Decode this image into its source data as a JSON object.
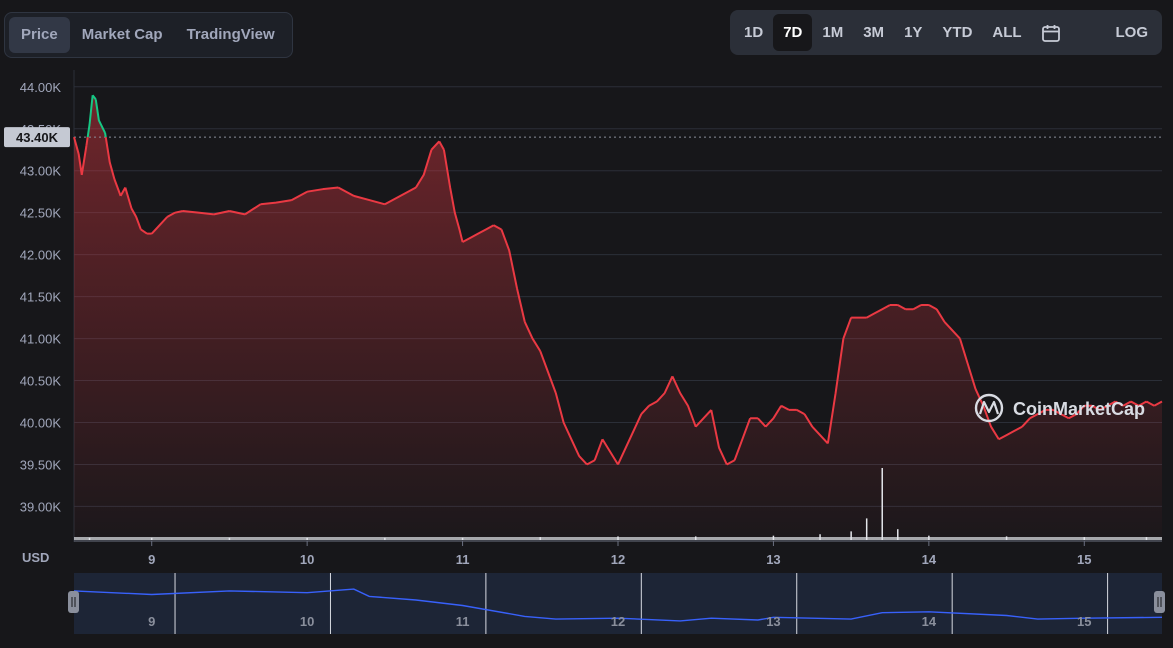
{
  "tabs": [
    {
      "label": "Price",
      "active": true
    },
    {
      "label": "Market Cap",
      "active": false
    },
    {
      "label": "TradingView",
      "active": false
    }
  ],
  "ranges": [
    {
      "label": "1D",
      "active": false
    },
    {
      "label": "7D",
      "active": true
    },
    {
      "label": "1M",
      "active": false
    },
    {
      "label": "3M",
      "active": false
    },
    {
      "label": "1Y",
      "active": false
    },
    {
      "label": "YTD",
      "active": false
    },
    {
      "label": "ALL",
      "active": false
    }
  ],
  "calendar_icon": "calendar-icon",
  "log_label": "LOG",
  "currency_label": "USD",
  "watermark": "CoinMarketCap",
  "colors": {
    "background": "#17171a",
    "down": "#ea3943",
    "up": "#16c784",
    "navigator_line": "#3861fb",
    "grid": "#2b2f38",
    "axis_text": "#a1a7bb"
  },
  "chart_data": {
    "type": "line",
    "ylim": [
      38600,
      44200
    ],
    "xlim": [
      8.5,
      15.5
    ],
    "yticks": [
      {
        "value": 39000,
        "label": "39.00K"
      },
      {
        "value": 39500,
        "label": "39.50K"
      },
      {
        "value": 40000,
        "label": "40.00K"
      },
      {
        "value": 40500,
        "label": "40.50K"
      },
      {
        "value": 41000,
        "label": "41.00K"
      },
      {
        "value": 41500,
        "label": "41.50K"
      },
      {
        "value": 42000,
        "label": "42.00K"
      },
      {
        "value": 42500,
        "label": "42.50K"
      },
      {
        "value": 43000,
        "label": "43.00K"
      },
      {
        "value": 43500,
        "label": "43.50K"
      },
      {
        "value": 44000,
        "label": "44.00K"
      }
    ],
    "xticks": [
      {
        "value": 9,
        "label": "9"
      },
      {
        "value": 10,
        "label": "10"
      },
      {
        "value": 11,
        "label": "11"
      },
      {
        "value": 12,
        "label": "12"
      },
      {
        "value": 13,
        "label": "13"
      },
      {
        "value": 14,
        "label": "14"
      },
      {
        "value": 15,
        "label": "15"
      }
    ],
    "reference": {
      "value": 43400,
      "label": "43.40K"
    },
    "grid": true,
    "series": [
      {
        "x": [
          8.5,
          8.53,
          8.55,
          8.58,
          8.6,
          8.62,
          8.64,
          8.66,
          8.7,
          8.73,
          8.76,
          8.8,
          8.83,
          8.87,
          8.9,
          8.93,
          8.97,
          9.0,
          9.05,
          9.1,
          9.15,
          9.2,
          9.3,
          9.4,
          9.5,
          9.6,
          9.7,
          9.8,
          9.9,
          10.0,
          10.1,
          10.2,
          10.3,
          10.4,
          10.5,
          10.6,
          10.7,
          10.75,
          10.8,
          10.85,
          10.88,
          10.92,
          10.95,
          10.98,
          11.0,
          11.05,
          11.1,
          11.15,
          11.2,
          11.25,
          11.3,
          11.35,
          11.4,
          11.45,
          11.5,
          11.55,
          11.6,
          11.65,
          11.7,
          11.75,
          11.8,
          11.85,
          11.9,
          11.95,
          12.0,
          12.05,
          12.1,
          12.15,
          12.2,
          12.25,
          12.3,
          12.35,
          12.4,
          12.45,
          12.5,
          12.55,
          12.6,
          12.65,
          12.7,
          12.75,
          12.8,
          12.85,
          12.9,
          12.95,
          13.0,
          13.05,
          13.1,
          13.15,
          13.2,
          13.25,
          13.3,
          13.35,
          13.4,
          13.45,
          13.5,
          13.55,
          13.6,
          13.65,
          13.7,
          13.75,
          13.8,
          13.85,
          13.9,
          13.95,
          14.0,
          14.05,
          14.1,
          14.15,
          14.2,
          14.25,
          14.3,
          14.35,
          14.4,
          14.45,
          14.5,
          14.55,
          14.6,
          14.65,
          14.7,
          14.75,
          14.8,
          14.85,
          14.9,
          14.95,
          15.0,
          15.05,
          15.1,
          15.15,
          15.2,
          15.25,
          15.3,
          15.35,
          15.4,
          15.45,
          15.5
        ],
        "values": [
          43400,
          43200,
          42950,
          43300,
          43550,
          43900,
          43850,
          43600,
          43450,
          43100,
          42900,
          42700,
          42800,
          42550,
          42450,
          42300,
          42250,
          42250,
          42350,
          42450,
          42500,
          42520,
          42500,
          42480,
          42520,
          42480,
          42600,
          42620,
          42650,
          42750,
          42780,
          42800,
          42700,
          42650,
          42600,
          42700,
          42800,
          42950,
          43250,
          43350,
          43250,
          42800,
          42500,
          42300,
          42150,
          42200,
          42250,
          42300,
          42350,
          42300,
          42050,
          41600,
          41200,
          41000,
          40850,
          40600,
          40350,
          40000,
          39800,
          39600,
          39500,
          39550,
          39800,
          39650,
          39500,
          39700,
          39900,
          40100,
          40200,
          40250,
          40350,
          40550,
          40350,
          40200,
          39950,
          40050,
          40150,
          39700,
          39500,
          39550,
          39800,
          40050,
          40050,
          39950,
          40050,
          40200,
          40150,
          40150,
          40100,
          39950,
          39850,
          39750,
          40350,
          41000,
          41250,
          41250,
          41250,
          41300,
          41350,
          41400,
          41400,
          41350,
          41350,
          41400,
          41400,
          41350,
          41200,
          41100,
          41000,
          40700,
          40400,
          40200,
          39950,
          39800,
          39850,
          39900,
          39950,
          40050,
          40100,
          40150,
          40150,
          40100,
          40050,
          40100,
          40200,
          40200,
          40150,
          40200,
          40250,
          40200,
          40250,
          40200,
          40250,
          40200,
          40250
        ]
      }
    ],
    "volume": {
      "x": [
        8.6,
        9.0,
        9.5,
        10.0,
        10.5,
        11.0,
        11.5,
        12.0,
        12.5,
        13.0,
        13.3,
        13.5,
        13.6,
        13.7,
        13.8,
        14.0,
        14.5,
        15.0,
        15.4
      ],
      "values": [
        3,
        3,
        3,
        3,
        3,
        3,
        4,
        5,
        5,
        6,
        8,
        12,
        30,
        100,
        15,
        6,
        5,
        4,
        4
      ]
    },
    "navigator": {
      "x": [
        8.5,
        9.0,
        9.5,
        10.0,
        10.3,
        10.4,
        10.7,
        11.0,
        11.4,
        11.6,
        12.0,
        12.4,
        12.6,
        12.9,
        13.0,
        13.5,
        13.7,
        14.0,
        14.5,
        14.7,
        15.0,
        15.5
      ],
      "values": [
        43400,
        43200,
        43400,
        43300,
        43500,
        43100,
        42900,
        42600,
        42000,
        41850,
        41900,
        41750,
        41900,
        41800,
        41950,
        41850,
        42200,
        42250,
        42050,
        41850,
        41900,
        41950
      ]
    }
  }
}
